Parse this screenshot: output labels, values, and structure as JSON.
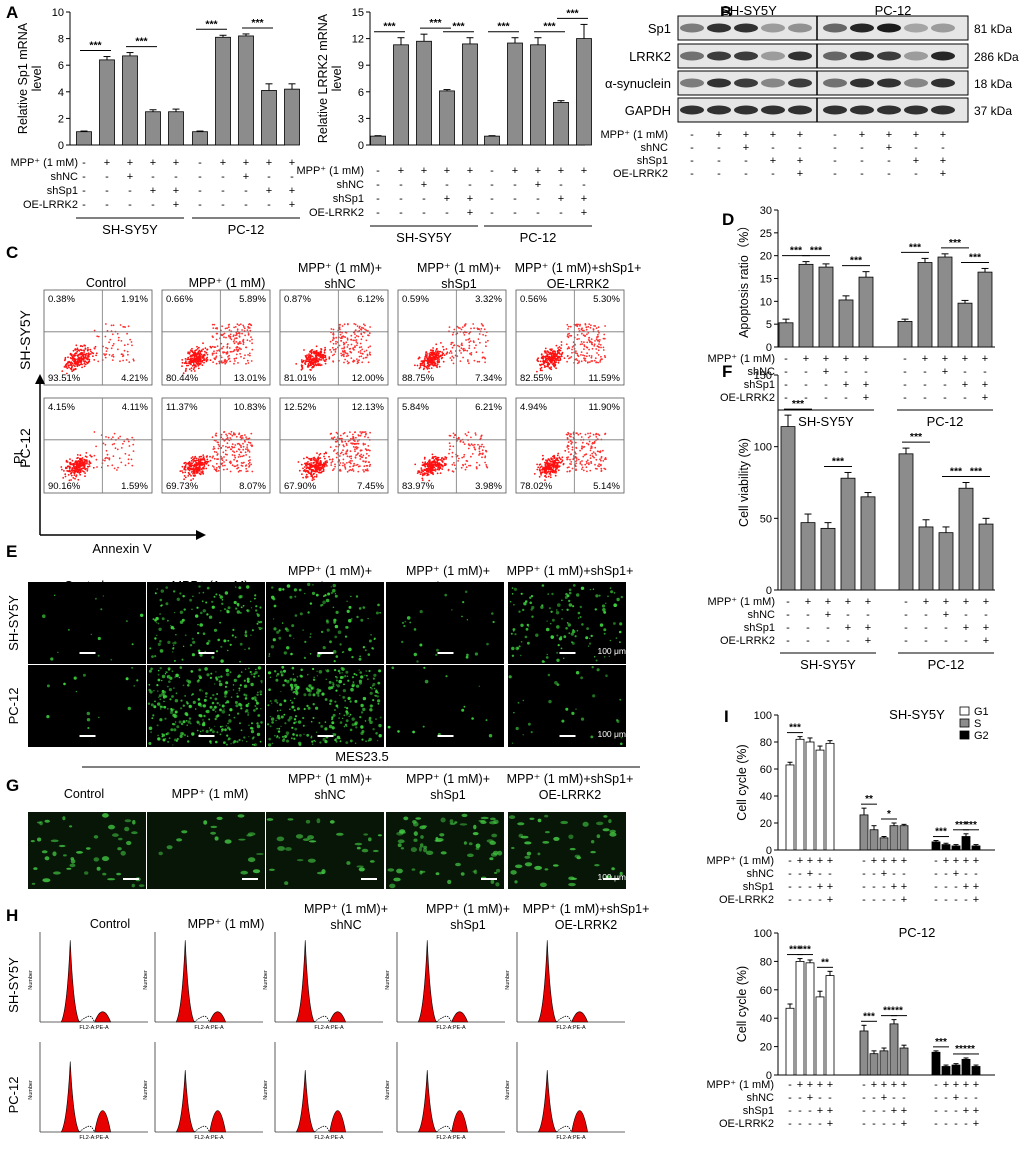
{
  "panel_letters": {
    "A": "A",
    "B": "B",
    "C": "C",
    "D": "D",
    "E": "E",
    "F": "F",
    "G": "G",
    "H": "H",
    "I": "I"
  },
  "conditions": [
    "Control",
    "MPP⁺ (1 mM)",
    "MPP⁺ (1 mM)+\nshNC",
    "MPP⁺ (1 mM)+\nshSp1",
    "MPP⁺ (1 mM)+shSp1+\nOE-LRRK2"
  ],
  "treatment_rows": [
    {
      "label": "MPP⁺ (1 mM)",
      "signs": [
        "-",
        "+",
        "+",
        "+",
        "+"
      ]
    },
    {
      "label": "shNC",
      "signs": [
        "-",
        "-",
        "+",
        "-",
        "-"
      ]
    },
    {
      "label": "shSp1",
      "signs": [
        "-",
        "-",
        "-",
        "+",
        "+"
      ]
    },
    {
      "label": "OE-LRRK2",
      "signs": [
        "-",
        "-",
        "-",
        "-",
        "+"
      ]
    }
  ],
  "cell_lines": [
    "SH-SY5Y",
    "PC-12"
  ],
  "panel_B": {
    "proteins": [
      {
        "name": "Sp1",
        "size": "81 kDa"
      },
      {
        "name": "LRRK2",
        "size": "286 kDa"
      },
      {
        "name": "α-synuclein",
        "size": "18 kDa"
      },
      {
        "name": "GAPDH",
        "size": "37 kDa"
      }
    ]
  },
  "panel_C": {
    "xlabel": "Annexin V",
    "ylabel": "PI",
    "quadrants": {
      "SH-SY5Y": [
        [
          "0.38%",
          "1.91%",
          "93.51%",
          "4.21%"
        ],
        [
          "0.66%",
          "5.89%",
          "80.44%",
          "13.01%"
        ],
        [
          "0.87%",
          "6.12%",
          "81.01%",
          "12.00%"
        ],
        [
          "0.59%",
          "3.32%",
          "88.75%",
          "7.34%"
        ],
        [
          "0.56%",
          "5.30%",
          "82.55%",
          "11.59%"
        ]
      ],
      "PC-12": [
        [
          "4.15%",
          "4.11%",
          "90.16%",
          "1.59%"
        ],
        [
          "11.37%",
          "10.83%",
          "69.73%",
          "8.07%"
        ],
        [
          "12.52%",
          "12.13%",
          "67.90%",
          "7.45%"
        ],
        [
          "5.84%",
          "6.21%",
          "83.97%",
          "3.98%"
        ],
        [
          "4.94%",
          "11.90%",
          "78.02%",
          "5.14%"
        ]
      ]
    }
  },
  "panel_E": {
    "scale": "100 μm"
  },
  "panel_G": {
    "header": "MES23.5",
    "scale": "100 μm"
  },
  "panel_H": {
    "xaxis": "FL2-A:PE-A",
    "yaxis": "Number"
  },
  "chart_data": [
    {
      "id": "A1",
      "type": "bar",
      "ylabel": "Relative Sp1 mRNA\nlevel",
      "ylim": [
        0,
        10
      ],
      "yticks": [
        0,
        2,
        4,
        6,
        8,
        10
      ],
      "groups": [
        "SH-SY5Y",
        "PC-12"
      ],
      "series": [
        {
          "name": "SH-SY5Y",
          "values": [
            1.0,
            6.4,
            6.7,
            2.5,
            2.5
          ],
          "errors": [
            0.05,
            0.25,
            0.25,
            0.15,
            0.2
          ]
        },
        {
          "name": "PC-12",
          "values": [
            1.0,
            8.1,
            8.2,
            4.1,
            4.2
          ],
          "errors": [
            0.05,
            0.15,
            0.15,
            0.5,
            0.4
          ]
        }
      ],
      "sig": [
        [
          0,
          0,
          1,
          "***"
        ],
        [
          0,
          2,
          3,
          "***"
        ],
        [
          1,
          0,
          1,
          "***"
        ],
        [
          1,
          2,
          3,
          "***"
        ]
      ]
    },
    {
      "id": "A2",
      "type": "bar",
      "ylabel": "Relative LRRK2 mRNA\nlevel",
      "ylim": [
        0,
        15
      ],
      "yticks": [
        0,
        3,
        6,
        9,
        12,
        15
      ],
      "groups": [
        "SH-SY5Y",
        "PC-12"
      ],
      "series": [
        {
          "name": "SH-SY5Y",
          "values": [
            1.0,
            11.3,
            11.7,
            6.1,
            11.4
          ],
          "errors": [
            0.05,
            0.8,
            0.8,
            0.15,
            0.7
          ]
        },
        {
          "name": "PC-12",
          "values": [
            1.0,
            11.5,
            11.3,
            4.8,
            12.0
          ],
          "errors": [
            0.05,
            0.6,
            0.8,
            0.2,
            1.6
          ]
        }
      ],
      "sig": [
        [
          0,
          0,
          1,
          "***"
        ],
        [
          0,
          2,
          3,
          "***"
        ],
        [
          0,
          3,
          4,
          "***"
        ],
        [
          1,
          0,
          1,
          "***"
        ],
        [
          1,
          2,
          3,
          "***"
        ],
        [
          1,
          3,
          4,
          "***"
        ]
      ]
    },
    {
      "id": "D",
      "type": "bar",
      "ylabel": "Apoptosis ratio（%）",
      "ylim": [
        0,
        30
      ],
      "yticks": [
        0,
        5,
        10,
        15,
        20,
        25,
        30
      ],
      "groups": [
        "SH-SY5Y",
        "PC-12"
      ],
      "series": [
        {
          "name": "SH-SY5Y",
          "values": [
            5.3,
            18.1,
            17.5,
            10.3,
            15.3
          ],
          "errors": [
            0.8,
            0.6,
            0.7,
            0.9,
            1.2
          ]
        },
        {
          "name": "PC-12",
          "values": [
            5.6,
            18.5,
            19.7,
            9.6,
            16.4
          ],
          "errors": [
            0.5,
            0.9,
            0.7,
            0.6,
            0.8
          ]
        }
      ],
      "sig": [
        [
          0,
          0,
          1,
          "***"
        ],
        [
          0,
          1,
          2,
          "***"
        ],
        [
          0,
          3,
          4,
          "***"
        ],
        [
          1,
          0,
          1,
          "***"
        ],
        [
          1,
          2,
          3,
          "***"
        ],
        [
          1,
          3,
          4,
          "***"
        ]
      ]
    },
    {
      "id": "F",
      "type": "bar",
      "ylabel": "Cell viability (%)",
      "ylim": [
        0,
        150
      ],
      "yticks": [
        0,
        50,
        100,
        150
      ],
      "groups": [
        "SH-SY5Y",
        "PC-12"
      ],
      "series": [
        {
          "name": "SH-SY5Y",
          "values": [
            114,
            47,
            43,
            78,
            65
          ],
          "errors": [
            8,
            6,
            4,
            4,
            3
          ]
        },
        {
          "name": "PC-12",
          "values": [
            95,
            44,
            40,
            71,
            46
          ],
          "errors": [
            4,
            5,
            4,
            4,
            4
          ]
        }
      ],
      "sig": [
        [
          0,
          0,
          1,
          "***"
        ],
        [
          0,
          2,
          3,
          "***"
        ],
        [
          1,
          0,
          1,
          "***"
        ],
        [
          1,
          2,
          3,
          "***"
        ],
        [
          1,
          3,
          4,
          "***"
        ]
      ]
    },
    {
      "id": "I1",
      "type": "bar",
      "title": "SH-SY5Y",
      "ylabel": "Cell cycle (%)",
      "ylim": [
        0,
        100
      ],
      "yticks": [
        0,
        20,
        40,
        60,
        80,
        100
      ],
      "legend": [
        "G1",
        "S",
        "G2"
      ],
      "legend_colors": [
        "#ffffff",
        "#8c8c8c",
        "#000000"
      ],
      "series": [
        {
          "name": "G1",
          "values": [
            63,
            82,
            80,
            74,
            79
          ],
          "errors": [
            2,
            2,
            3,
            3,
            2
          ]
        },
        {
          "name": "S",
          "values": [
            26,
            15,
            9,
            18,
            18
          ],
          "errors": [
            5,
            3,
            1,
            2,
            1
          ]
        },
        {
          "name": "G2",
          "values": [
            6,
            4,
            3,
            10,
            3
          ],
          "errors": [
            1,
            1,
            1,
            2,
            1
          ]
        }
      ],
      "sig": [
        [
          0,
          0,
          1,
          "***"
        ],
        [
          1,
          0,
          1,
          "**"
        ],
        [
          1,
          2,
          3,
          "*"
        ],
        [
          2,
          0,
          1,
          "***"
        ],
        [
          2,
          2,
          3,
          "***"
        ],
        [
          2,
          3,
          4,
          "***"
        ]
      ]
    },
    {
      "id": "I2",
      "type": "bar",
      "title": "PC-12",
      "ylabel": "Cell cycle (%)",
      "ylim": [
        0,
        100
      ],
      "yticks": [
        0,
        20,
        40,
        60,
        80,
        100
      ],
      "series": [
        {
          "name": "G1",
          "values": [
            47,
            80,
            79,
            55,
            70
          ],
          "errors": [
            3,
            2,
            2,
            4,
            3
          ]
        },
        {
          "name": "S",
          "values": [
            31,
            15,
            17,
            36,
            19
          ],
          "errors": [
            4,
            2,
            2,
            3,
            2
          ]
        },
        {
          "name": "G2",
          "values": [
            16,
            6,
            7,
            11,
            6
          ],
          "errors": [
            1,
            1,
            1,
            1,
            1
          ]
        }
      ],
      "sig": [
        [
          0,
          0,
          1,
          "***"
        ],
        [
          0,
          1,
          2,
          "***"
        ],
        [
          0,
          3,
          4,
          "**"
        ],
        [
          1,
          0,
          1,
          "***"
        ],
        [
          1,
          2,
          3,
          "***"
        ],
        [
          1,
          3,
          4,
          "**"
        ],
        [
          2,
          0,
          1,
          "***"
        ],
        [
          2,
          2,
          3,
          "***"
        ],
        [
          2,
          3,
          4,
          "**"
        ]
      ]
    }
  ]
}
